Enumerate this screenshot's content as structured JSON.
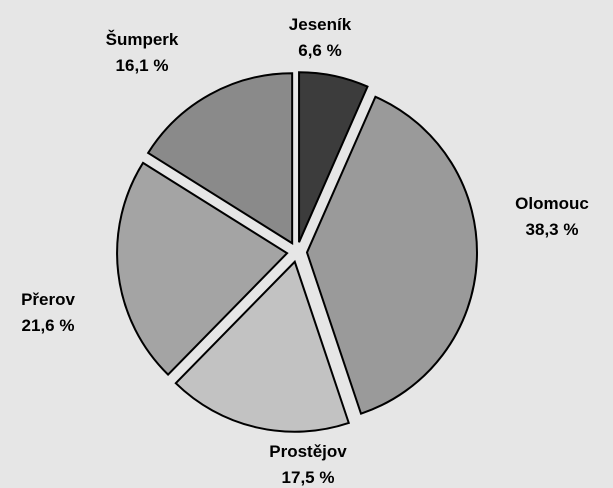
{
  "chart_data": {
    "type": "pie",
    "title": "",
    "slices": [
      {
        "name": "Jeseník",
        "value": 6.6,
        "label": "6,6 %",
        "color": "#3c3c3c"
      },
      {
        "name": "Olomouc",
        "value": 38.3,
        "label": "38,3 %",
        "color": "#9a9a9a"
      },
      {
        "name": "Prostějov",
        "value": 17.5,
        "label": "17,5 %",
        "color": "#c2c2c2"
      },
      {
        "name": "Přerov",
        "value": 21.6,
        "label": "21,6 %",
        "color": "#a4a4a4"
      },
      {
        "name": "Šumperk",
        "value": 16.1,
        "label": "16,1 %",
        "color": "#8a8a8a"
      }
    ],
    "start_angle": "top",
    "direction": "clockwise",
    "exploded": true,
    "legend": "none",
    "data_labels": "outside, name and percent"
  },
  "colors": {
    "background": "#e6e6e6",
    "outline": "#000000"
  }
}
